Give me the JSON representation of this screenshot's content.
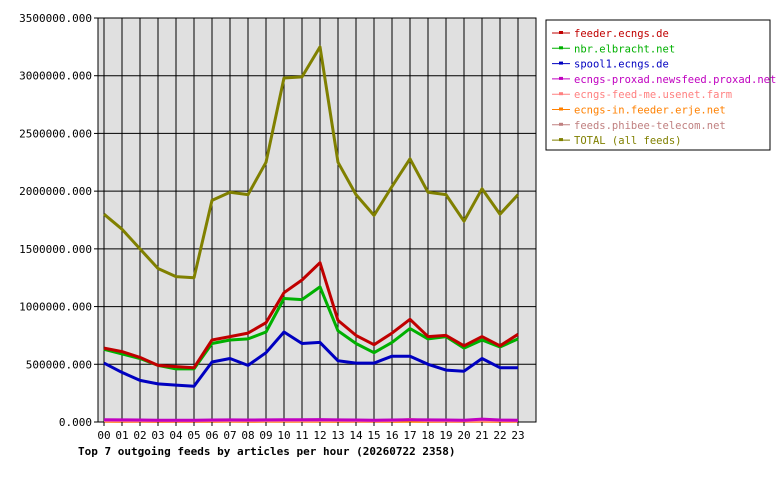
{
  "chart_data": {
    "type": "line",
    "title": "Top 7 outgoing feeds by articles per hour (20260722 2358)",
    "xlabel": "",
    "ylabel": "",
    "ylim": [
      0,
      3500000
    ],
    "y_ticks": [
      0,
      500000,
      1000000,
      1500000,
      2000000,
      2500000,
      3000000,
      3500000
    ],
    "y_tick_labels": [
      "0.000",
      "500000.000",
      "1000000.000",
      "1500000.000",
      "2000000.000",
      "2500000.000",
      "3000000.000",
      "3500000.000"
    ],
    "categories": [
      "00",
      "01",
      "02",
      "03",
      "04",
      "05",
      "06",
      "07",
      "08",
      "09",
      "10",
      "11",
      "12",
      "13",
      "14",
      "15",
      "16",
      "17",
      "18",
      "19",
      "20",
      "21",
      "22",
      "23"
    ],
    "grid": true,
    "legend_position": "right",
    "plot_background": "#e0e0e0",
    "series": [
      {
        "name": "feeder.ecngs.de",
        "color": "#c00000",
        "values": [
          640000,
          610000,
          560000,
          490000,
          480000,
          470000,
          710000,
          740000,
          770000,
          860000,
          1120000,
          1230000,
          1380000,
          880000,
          750000,
          670000,
          770000,
          890000,
          740000,
          750000,
          660000,
          740000,
          660000,
          760000
        ]
      },
      {
        "name": "nbr.elbracht.net",
        "color": "#00b000",
        "values": [
          630000,
          590000,
          550000,
          490000,
          460000,
          460000,
          680000,
          710000,
          720000,
          780000,
          1070000,
          1060000,
          1170000,
          790000,
          680000,
          600000,
          690000,
          810000,
          720000,
          740000,
          640000,
          710000,
          650000,
          720000
        ]
      },
      {
        "name": "spool1.ecngs.de",
        "color": "#0000c0",
        "values": [
          510000,
          430000,
          360000,
          330000,
          320000,
          310000,
          520000,
          550000,
          490000,
          600000,
          780000,
          680000,
          690000,
          530000,
          510000,
          510000,
          570000,
          570000,
          500000,
          450000,
          440000,
          550000,
          470000,
          470000
        ]
      },
      {
        "name": "ecngs-proxad.newsfeed.proxad.net",
        "color": "#c000c0",
        "values": [
          20000,
          18000,
          17000,
          16000,
          16000,
          15000,
          17000,
          18000,
          17000,
          18000,
          20000,
          19000,
          21000,
          18000,
          17000,
          16000,
          17000,
          19000,
          18000,
          17000,
          16000,
          25000,
          17000,
          16000
        ]
      },
      {
        "name": "ecngs-feed-me.usenet.farm",
        "color": "#ff8080",
        "values": [
          12000,
          10000,
          9000,
          9000,
          8000,
          8000,
          10000,
          11000,
          10000,
          11000,
          12000,
          11000,
          12000,
          10000,
          9000,
          9000,
          10000,
          22000,
          10000,
          9000,
          9000,
          12000,
          10000,
          9000
        ]
      },
      {
        "name": "ecngs-in.feeder.erje.net",
        "color": "#ff8000",
        "values": [
          6000,
          5000,
          5000,
          4000,
          4000,
          4000,
          5000,
          6000,
          5000,
          6000,
          6000,
          6000,
          7000,
          5000,
          5000,
          5000,
          5000,
          6000,
          5000,
          5000,
          5000,
          6000,
          5000,
          5000
        ]
      },
      {
        "name": "feeds.phibee-telecom.net",
        "color": "#c08080",
        "values": [
          14000,
          12000,
          11000,
          10000,
          10000,
          10000,
          12000,
          13000,
          12000,
          13000,
          14000,
          13000,
          14000,
          12000,
          11000,
          11000,
          12000,
          14000,
          12000,
          11000,
          11000,
          14000,
          12000,
          11000
        ]
      },
      {
        "name": "TOTAL (all feeds)",
        "color": "#808000",
        "values": [
          1800000,
          1670000,
          1500000,
          1330000,
          1260000,
          1250000,
          1920000,
          1990000,
          1970000,
          2250000,
          2980000,
          2990000,
          3250000,
          2250000,
          1970000,
          1790000,
          2040000,
          2280000,
          1990000,
          1970000,
          1740000,
          2020000,
          1800000,
          1970000
        ]
      }
    ]
  }
}
